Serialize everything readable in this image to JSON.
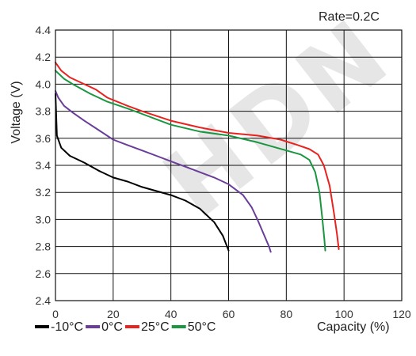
{
  "chart_data": {
    "type": "line",
    "rate_label": "Rate=0.2C",
    "xlabel": "Capacity (%)",
    "ylabel": "Voltage (V)",
    "xlim": [
      0,
      120
    ],
    "ylim": [
      2.4,
      4.4
    ],
    "xticks": [
      0,
      20,
      40,
      60,
      80,
      100,
      120
    ],
    "yticks": [
      "2.4",
      "2.6",
      "2.8",
      "3.0",
      "3.2",
      "3.4",
      "3.6",
      "3.8",
      "4.0",
      "4.2",
      "4.4"
    ],
    "grid": true,
    "legend_position": "bottom-left",
    "watermark": "HDN",
    "series": [
      {
        "name": "-10°C",
        "color": "#000000",
        "points": [
          [
            0,
            3.93
          ],
          [
            0.5,
            3.62
          ],
          [
            2,
            3.53
          ],
          [
            5,
            3.47
          ],
          [
            10,
            3.42
          ],
          [
            15,
            3.36
          ],
          [
            20,
            3.31
          ],
          [
            25,
            3.28
          ],
          [
            30,
            3.24
          ],
          [
            35,
            3.21
          ],
          [
            40,
            3.18
          ],
          [
            45,
            3.14
          ],
          [
            50,
            3.08
          ],
          [
            55,
            2.98
          ],
          [
            58,
            2.88
          ],
          [
            60,
            2.77
          ]
        ]
      },
      {
        "name": "0°C",
        "color": "#6a3d9a",
        "points": [
          [
            0,
            3.95
          ],
          [
            1,
            3.9
          ],
          [
            3,
            3.84
          ],
          [
            6,
            3.79
          ],
          [
            10,
            3.73
          ],
          [
            15,
            3.66
          ],
          [
            20,
            3.59
          ],
          [
            25,
            3.55
          ],
          [
            30,
            3.51
          ],
          [
            35,
            3.47
          ],
          [
            40,
            3.43
          ],
          [
            45,
            3.39
          ],
          [
            50,
            3.35
          ],
          [
            55,
            3.31
          ],
          [
            60,
            3.26
          ],
          [
            65,
            3.18
          ],
          [
            68,
            3.09
          ],
          [
            70,
            3.0
          ],
          [
            72,
            2.9
          ],
          [
            74,
            2.8
          ],
          [
            74.6,
            2.76
          ]
        ]
      },
      {
        "name": "25°C",
        "color": "#e8231f",
        "points": [
          [
            0,
            4.16
          ],
          [
            2,
            4.1
          ],
          [
            5,
            4.05
          ],
          [
            10,
            4.0
          ],
          [
            14,
            3.96
          ],
          [
            18,
            3.9
          ],
          [
            25,
            3.84
          ],
          [
            30,
            3.8
          ],
          [
            40,
            3.73
          ],
          [
            50,
            3.68
          ],
          [
            60,
            3.64
          ],
          [
            70,
            3.62
          ],
          [
            78,
            3.59
          ],
          [
            84,
            3.55
          ],
          [
            88,
            3.52
          ],
          [
            91,
            3.48
          ],
          [
            93,
            3.4
          ],
          [
            95,
            3.25
          ],
          [
            96.5,
            3.05
          ],
          [
            97.5,
            2.9
          ],
          [
            98.2,
            2.78
          ]
        ]
      },
      {
        "name": "50°C",
        "color": "#1a9641",
        "points": [
          [
            0,
            4.1
          ],
          [
            3,
            4.04
          ],
          [
            6,
            4.0
          ],
          [
            12,
            3.93
          ],
          [
            18,
            3.87
          ],
          [
            25,
            3.82
          ],
          [
            30,
            3.78
          ],
          [
            40,
            3.7
          ],
          [
            50,
            3.65
          ],
          [
            60,
            3.62
          ],
          [
            70,
            3.57
          ],
          [
            80,
            3.51
          ],
          [
            85,
            3.48
          ],
          [
            88,
            3.44
          ],
          [
            90,
            3.35
          ],
          [
            91.5,
            3.2
          ],
          [
            92.5,
            3.0
          ],
          [
            93.2,
            2.85
          ],
          [
            93.5,
            2.77
          ]
        ]
      }
    ]
  }
}
